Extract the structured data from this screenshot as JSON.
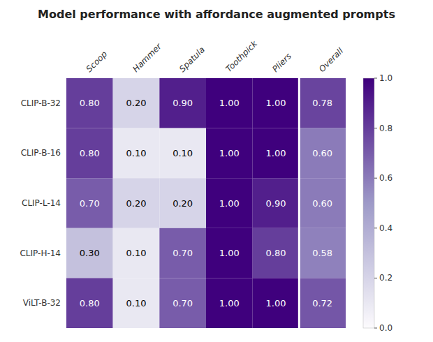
{
  "chart_data": {
    "type": "heatmap",
    "title": "Model performance with affordance augmented prompts",
    "rows": [
      "CLIP-B-32",
      "CLIP-B-16",
      "CLIP-L-14",
      "CLIP-H-14",
      "ViLT-B-32"
    ],
    "cols": [
      "Scoop",
      "Hammer",
      "Spatula",
      "Toothpick",
      "Pliers",
      "Overall"
    ],
    "values": [
      [
        0.8,
        0.2,
        0.9,
        1.0,
        1.0,
        0.78
      ],
      [
        0.8,
        0.1,
        0.1,
        1.0,
        1.0,
        0.6
      ],
      [
        0.7,
        0.2,
        0.2,
        1.0,
        0.9,
        0.6
      ],
      [
        0.3,
        0.1,
        0.7,
        1.0,
        0.8,
        0.58
      ],
      [
        0.8,
        0.1,
        0.7,
        1.0,
        1.0,
        0.72
      ]
    ],
    "value_labels": [
      [
        "0.80",
        "0.20",
        "0.90",
        "1.00",
        "1.00",
        "0.78"
      ],
      [
        "0.80",
        "0.10",
        "0.10",
        "1.00",
        "1.00",
        "0.60"
      ],
      [
        "0.70",
        "0.20",
        "0.20",
        "1.00",
        "0.90",
        "0.60"
      ],
      [
        "0.30",
        "0.10",
        "0.70",
        "1.00",
        "0.80",
        "0.58"
      ],
      [
        "0.80",
        "0.10",
        "0.70",
        "1.00",
        "1.00",
        "0.72"
      ]
    ],
    "data_labels": true,
    "color": "#3f007d",
    "colorbar_range": [
      0.0,
      1.0
    ],
    "colorbar_ticks": [
      {
        "value": 0.0,
        "label": "0.0"
      },
      0.2,
      0.4,
      0.6,
      0.8,
      {
        "value": 1.0,
        "label": "1.0"
      }
    ]
  }
}
